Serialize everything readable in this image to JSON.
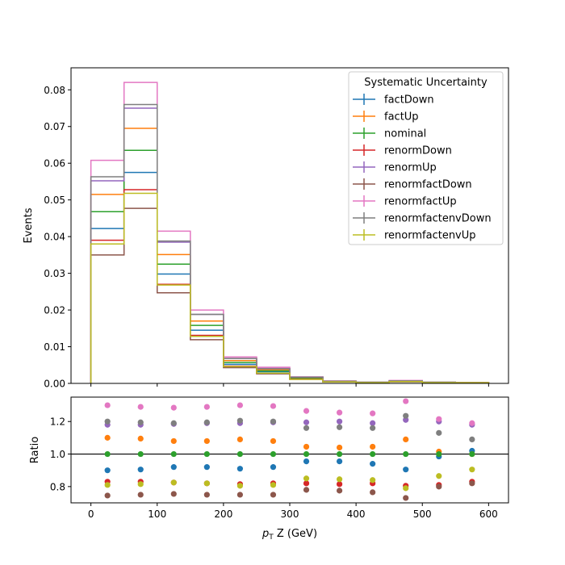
{
  "chart_data": [
    {
      "type": "step",
      "ylabel": "Events",
      "xlim": [
        -30,
        630
      ],
      "ylim": [
        0,
        0.086
      ],
      "yticks": [
        "0.00",
        "0.01",
        "0.02",
        "0.03",
        "0.04",
        "0.05",
        "0.06",
        "0.07",
        "0.08"
      ],
      "bin_edges": [
        0,
        50,
        100,
        150,
        200,
        250,
        300,
        350,
        400,
        450,
        500,
        550,
        600
      ],
      "legend": {
        "title": "Systematic Uncertainty",
        "placement": "top-right"
      },
      "series": [
        {
          "name": "factDown",
          "color": "#1f77b4",
          "values": [
            0.0422,
            0.0575,
            0.0298,
            0.0145,
            0.0052,
            0.0032,
            0.0014,
            0.0005,
            0.0003,
            0.0006,
            0.0003,
            0.0002
          ]
        },
        {
          "name": "factUp",
          "color": "#ff7f0e",
          "values": [
            0.0515,
            0.0695,
            0.0351,
            0.017,
            0.0062,
            0.0037,
            0.0015,
            0.0006,
            0.0003,
            0.0007,
            0.0003,
            0.0002
          ]
        },
        {
          "name": "nominal",
          "color": "#2ca02c",
          "values": [
            0.0468,
            0.0635,
            0.0325,
            0.0158,
            0.0057,
            0.0034,
            0.0014,
            0.0005,
            0.0003,
            0.0006,
            0.0003,
            0.0002
          ]
        },
        {
          "name": "renormDown",
          "color": "#d62728",
          "values": [
            0.039,
            0.0528,
            0.027,
            0.0131,
            0.0047,
            0.0028,
            0.0012,
            0.0004,
            0.0002,
            0.0005,
            0.0002,
            0.0002
          ]
        },
        {
          "name": "renormUp",
          "color": "#9467bd",
          "values": [
            0.0552,
            0.075,
            0.0385,
            0.0188,
            0.0068,
            0.0041,
            0.0017,
            0.0006,
            0.0003,
            0.0007,
            0.0003,
            0.0002
          ]
        },
        {
          "name": "renormfactDown",
          "color": "#8c564b",
          "values": [
            0.035,
            0.0477,
            0.0247,
            0.0119,
            0.0043,
            0.0026,
            0.0011,
            0.0004,
            0.0002,
            0.0004,
            0.0002,
            0.0002
          ]
        },
        {
          "name": "renormfactUp",
          "color": "#e377c2",
          "values": [
            0.0608,
            0.082,
            0.0415,
            0.02,
            0.0072,
            0.0044,
            0.0018,
            0.0007,
            0.0003,
            0.0008,
            0.0003,
            0.0002
          ]
        },
        {
          "name": "renormfactenvDown",
          "color": "#7f7f7f",
          "values": [
            0.0563,
            0.076,
            0.0388,
            0.0188,
            0.0068,
            0.004,
            0.0017,
            0.0006,
            0.0003,
            0.0007,
            0.0003,
            0.0002
          ]
        },
        {
          "name": "renormfactenvUp",
          "color": "#bcbd22",
          "values": [
            0.038,
            0.0518,
            0.0268,
            0.0128,
            0.0046,
            0.0028,
            0.0011,
            0.0004,
            0.0002,
            0.0005,
            0.0002,
            0.0002
          ]
        }
      ]
    },
    {
      "type": "scatter",
      "xlabel_math": "p",
      "xlabel_sub": "T",
      "xlabel_rest": " Z (GeV)",
      "ylabel": "Ratio",
      "xlim": [
        -30,
        630
      ],
      "ylim": [
        0.7,
        1.35
      ],
      "xticks": [
        "0",
        "100",
        "200",
        "300",
        "400",
        "500",
        "600"
      ],
      "yticks": [
        "0.8",
        "1.0",
        "1.2"
      ],
      "reference_line": 1.0,
      "x": [
        25,
        75,
        125,
        175,
        225,
        275,
        325,
        375,
        425,
        475,
        525,
        575
      ],
      "series": [
        {
          "name": "factDown",
          "color": "#1f77b4",
          "values": [
            0.9,
            0.905,
            0.92,
            0.92,
            0.91,
            0.92,
            0.955,
            0.955,
            0.94,
            0.905,
            0.985,
            1.02
          ]
        },
        {
          "name": "factUp",
          "color": "#ff7f0e",
          "values": [
            1.1,
            1.095,
            1.08,
            1.08,
            1.09,
            1.08,
            1.045,
            1.04,
            1.045,
            1.09,
            1.015,
            1.0
          ]
        },
        {
          "name": "nominal",
          "color": "#2ca02c",
          "values": [
            1.0,
            1.0,
            1.0,
            1.0,
            1.0,
            1.0,
            1.0,
            1.0,
            1.0,
            1.0,
            1.0,
            1.0
          ]
        },
        {
          "name": "renormDown",
          "color": "#d62728",
          "values": [
            0.83,
            0.83,
            0.825,
            0.82,
            0.815,
            0.82,
            0.82,
            0.815,
            0.82,
            0.805,
            0.81,
            0.83
          ]
        },
        {
          "name": "renormUp",
          "color": "#9467bd",
          "values": [
            1.18,
            1.18,
            1.185,
            1.19,
            1.19,
            1.195,
            1.195,
            1.2,
            1.19,
            1.21,
            1.2,
            1.18
          ]
        },
        {
          "name": "renormfactDown",
          "color": "#8c564b",
          "values": [
            0.745,
            0.75,
            0.755,
            0.75,
            0.75,
            0.75,
            0.78,
            0.775,
            0.765,
            0.73,
            0.8,
            0.82
          ]
        },
        {
          "name": "renormfactUp",
          "color": "#e377c2",
          "values": [
            1.3,
            1.29,
            1.285,
            1.29,
            1.3,
            1.295,
            1.265,
            1.255,
            1.25,
            1.325,
            1.215,
            1.19
          ]
        },
        {
          "name": "renormfactenvDown",
          "color": "#7f7f7f",
          "values": [
            1.2,
            1.195,
            1.19,
            1.195,
            1.205,
            1.2,
            1.16,
            1.165,
            1.16,
            1.235,
            1.13,
            1.09
          ]
        },
        {
          "name": "renormfactenvUp",
          "color": "#bcbd22",
          "values": [
            0.81,
            0.815,
            0.825,
            0.82,
            0.805,
            0.81,
            0.85,
            0.845,
            0.84,
            0.79,
            0.865,
            0.905
          ]
        }
      ]
    }
  ]
}
